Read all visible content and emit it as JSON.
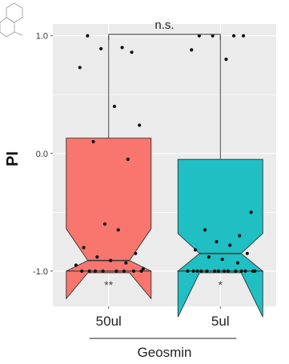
{
  "chart_data": {
    "type": "box",
    "title": "",
    "xlabel": "Geosmin",
    "ylabel": "PI",
    "categories": [
      "50ul",
      "5ul"
    ],
    "ylim": [
      -1.3,
      1.1
    ],
    "yticks": [
      {
        "value": 1.0,
        "label": "1.0"
      },
      {
        "value": 0.0,
        "label": "0.0"
      },
      {
        "value": -1.0,
        "label": "-1.0"
      }
    ],
    "grid": true,
    "boxes": [
      {
        "category": "50ul",
        "q1": -1.0,
        "median": -0.91,
        "q3": 0.13,
        "whisker_low": -1.0,
        "whisker_high": 1.0,
        "notch_low": -1.0,
        "notch_high": -0.64,
        "color": "#F8766D",
        "significance": "**"
      },
      {
        "category": "5ul",
        "q1": -1.0,
        "median": -0.85,
        "q3": -0.05,
        "whisker_low": -1.0,
        "whisker_high": 1.0,
        "notch_low": -1.0,
        "notch_high": -0.68,
        "color": "#1FBFC3",
        "significance": "*"
      }
    ],
    "points": [
      {
        "category": "50ul",
        "values": [
          1.0,
          0.9,
          0.89,
          0.86,
          0.73,
          0.4,
          0.24,
          0.1,
          -0.05,
          -0.6,
          -0.65,
          -0.8,
          -0.85,
          -0.88,
          -0.91,
          -0.93,
          -0.95,
          -0.98,
          -1.0,
          -1.0,
          -1.0,
          -1.0,
          -1.0,
          -1.0,
          -1.0,
          -1.0
        ]
      },
      {
        "category": "5ul",
        "values": [
          1.0,
          1.0,
          1.0,
          1.0,
          0.88,
          0.8,
          -0.5,
          -0.65,
          -0.7,
          -0.75,
          -0.78,
          -0.82,
          -0.85,
          -0.88,
          -0.9,
          -0.93,
          -1.0,
          -1.0,
          -1.0,
          -1.0,
          -1.0,
          -1.0,
          -1.0,
          -1.0,
          -1.0,
          -1.0,
          -1.0,
          -1.0,
          -1.0,
          -1.0
        ]
      }
    ],
    "comparison": {
      "label": "n.s.",
      "between": [
        "50ul",
        "5ul"
      ]
    }
  },
  "colors": {
    "panel_bg": "#EBEBEB",
    "grid": "#FFFFFF"
  },
  "icons": {
    "structure": "molecule-structure-icon"
  }
}
